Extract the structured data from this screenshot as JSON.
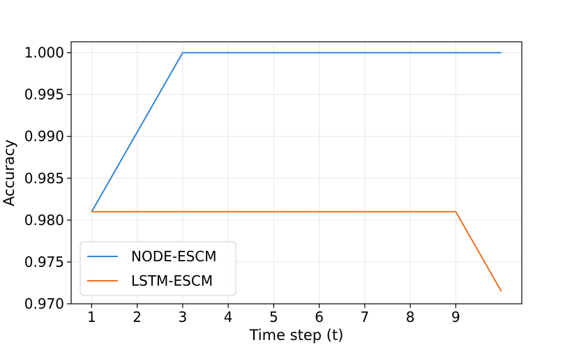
{
  "chart_data": {
    "type": "line",
    "title": "",
    "xlabel": "Time step (t)",
    "ylabel": "Accuracy",
    "x": [
      1,
      2,
      3,
      4,
      5,
      6,
      7,
      8,
      9,
      10
    ],
    "x_ticks": [
      1,
      2,
      3,
      4,
      5,
      6,
      7,
      8,
      9
    ],
    "y_ticks": [
      "0.970",
      "0.975",
      "0.980",
      "0.985",
      "0.990",
      "0.995",
      "1.000"
    ],
    "xlim": [
      0.55,
      10.45
    ],
    "ylim": [
      0.97,
      1.0013
    ],
    "grid": true,
    "legend_position": "lower-left",
    "series": [
      {
        "name": "NODE-ESCM",
        "color": "#2e86de",
        "values": [
          0.981,
          0.9905,
          1.0,
          1.0,
          1.0,
          1.0,
          1.0,
          1.0,
          1.0,
          1.0
        ]
      },
      {
        "name": "LSTM-ESCM",
        "color": "#f07020",
        "values": [
          0.981,
          0.981,
          0.981,
          0.981,
          0.981,
          0.981,
          0.981,
          0.981,
          0.981,
          0.9715
        ]
      }
    ]
  }
}
